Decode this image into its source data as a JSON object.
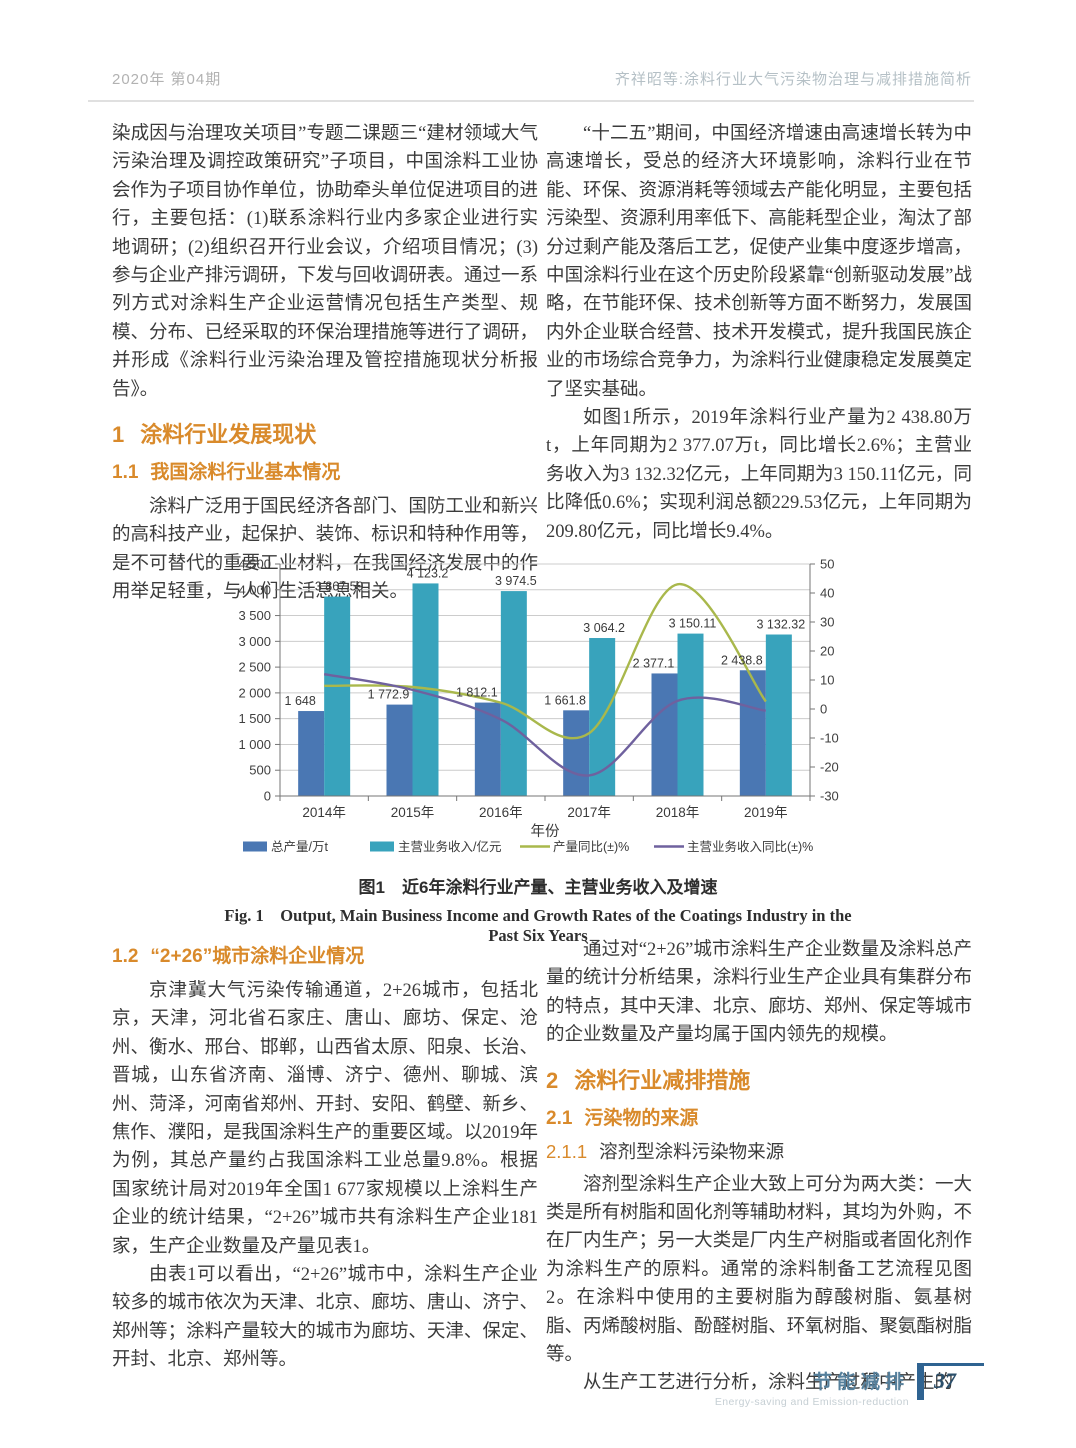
{
  "header": {
    "left": "2020年 第04期",
    "right": "齐祥昭等:涂料行业大气污染物治理与减排措施简析"
  },
  "left_top": {
    "para1": "染成因与治理攻关项目”专题二课题三“建材领域大气污染治理及调控政策研究”子项目，中国涂料工业协会作为子项目协作单位，协助牵头单位促进项目的进行，主要包括：(1)联系涂料行业内多家企业进行实地调研；(2)组织召开行业会议，介绍项目情况；(3)参与企业产排污调研，下发与回收调研表。通过一系列方式对涂料生产企业运营情况包括生产类型、规模、分布、已经采取的环保治理措施等进行了调研，并形成《涂料行业污染治理及管控措施现状分析报告》。",
    "para2": "涂料广泛用于国民经济各部门、国防工业和新兴的高科技产业，起保护、装饰、标识和特种作用等，是不可替代的重要工业材料，在我国经济发展中的作用举足轻重，与人们生活息息相关。"
  },
  "right_top": {
    "para1": "“十二五”期间，中国经济增速由高速增长转为中高速增长，受总的经济大环境影响，涂料行业在节能、环保、资源消耗等领域去产能化明显，主要包括污染型、资源利用率低下、高能耗型企业，淘汰了部分过剩产能及落后工艺，促使产业集中度逐步增高，中国涂料行业在这个历史阶段紧靠“创新驱动发展”战略，在节能环保、技术创新等方面不断努力，发展国内外企业联合经营、技术开发模式，提升我国民族企业的市场综合竞争力，为涂料行业健康稳定发展奠定了坚实基础。",
    "para2": "如图1所示，2019年涂料行业产量为2 438.80万t，上年同期为2 377.07万t，同比增长2.6%；主营业务收入为3 132.32亿元，上年同期为3 150.11亿元，同比降低0.6%；实现利润总额229.53亿元，上年同期为209.80亿元，同比增长9.4%。"
  },
  "sections": {
    "s1": {
      "num": "1",
      "title": "涂料行业发展现状"
    },
    "s1_1": {
      "num": "1.1",
      "title": "我国涂料行业基本情况"
    },
    "s1_2": {
      "num": "1.2",
      "title": "“2+26”城市涂料企业情况"
    },
    "s2": {
      "num": "2",
      "title": "涂料行业减排措施"
    },
    "s2_1": {
      "num": "2.1",
      "title": "污染物的来源"
    },
    "s2_1_1": {
      "num": "2.1.1",
      "title": "溶剂型涂料污染物来源"
    }
  },
  "figure": {
    "caption_zh": "图1　近6年涂料行业产量、主营业务收入及增速",
    "caption_en": "Fig. 1　Output, Main Business Income and Growth Rates of the Coatings Industry in the Past Six Years"
  },
  "chart_data": {
    "type": "bar+line combo",
    "categories": [
      "2014年",
      "2015年",
      "2016年",
      "2017年",
      "2018年",
      "2019年"
    ],
    "xlabel": "年份",
    "grid": true,
    "legend_position": "bottom",
    "left_axis": {
      "min": 0,
      "max": 4500,
      "step": 500,
      "tick_labels": [
        "0",
        "500",
        "1 000",
        "1 500",
        "2 000",
        "2 500",
        "3 000",
        "3 500",
        "4 000",
        "4 500"
      ]
    },
    "right_axis": {
      "min": -30,
      "max": 50,
      "step": 10,
      "tick_labels": [
        "-30",
        "-20",
        "-10",
        "0",
        "10",
        "20",
        "30",
        "40",
        "50"
      ]
    },
    "series": [
      {
        "name": "总产量/万t",
        "type": "bar",
        "axis": "left",
        "color": "#4a77b3",
        "values": [
          1648,
          1772.9,
          1812.1,
          1661.8,
          2377.1,
          2438.8
        ],
        "labels": [
          "1 648",
          "1 772.9",
          "1 812.1",
          "1 661.8",
          "2 377.1",
          "2 438.8"
        ]
      },
      {
        "name": "主营业务收入/亿元",
        "type": "bar",
        "axis": "left",
        "color": "#38a3bc",
        "values": [
          3867.59,
          4123.2,
          3974.5,
          3064.2,
          3150.11,
          3132.32
        ],
        "labels": [
          "3 867.59",
          "4 123.2",
          "3 974.5",
          "3 064.2",
          "3 150.11",
          "3 132.32"
        ]
      },
      {
        "name": "产量同比(±)%",
        "type": "line",
        "axis": "right",
        "color": "#a9b84c",
        "values": [
          8,
          7.6,
          2.2,
          -8.3,
          43,
          2.6
        ]
      },
      {
        "name": "主营业务收入同比(±)%",
        "type": "line",
        "axis": "right",
        "color": "#6f619e",
        "values": [
          12,
          6.6,
          -3.6,
          -22.9,
          2.8,
          -0.6
        ]
      }
    ]
  },
  "left_bottom": {
    "para1": "京津冀大气污染传输通道，2+26城市，包括北京，天津，河北省石家庄、唐山、廊坊、保定、沧州、衡水、邢台、邯郸，山西省太原、阳泉、长治、晋城，山东省济南、淄博、济宁、德州、聊城、滨州、菏泽，河南省郑州、开封、安阳、鹤壁、新乡、焦作、濮阳，是我国涂料生产的重要区域。以2019年为例，其总产量约占我国涂料工业总量9.8%。根据国家统计局对2019年全国1 677家规模以上涂料生产企业的统计结果，“2+26”城市共有涂料生产企业181家，生产企业数量及产量见表1。",
    "para2": "由表1可以看出，“2+26”城市中，涂料生产企业较多的城市依次为天津、北京、廊坊、唐山、济宁、郑州等；涂料产量较大的城市为廊坊、天津、保定、开封、北京、郑州等。"
  },
  "right_bottom": {
    "para1": "通过对“2+26”城市涂料生产企业数量及涂料总产量的统计分析结果，涂料行业生产企业具有集群分布的特点，其中天津、北京、廊坊、郑州、保定等城市的企业数量及产量均属于国内领先的规模。",
    "para2": "溶剂型涂料生产企业大致上可分为两大类：一大类是所有树脂和固化剂等辅助材料，其均为外购，不在厂内生产；另一大类是厂内生产树脂或者固化剂作为涂料生产的原料。通常的涂料制备工艺流程见图2。在涂料中使用的主要树脂为醇酸树脂、氨基树脂、丙烯酸树脂、酚醛树脂、环氧树脂、聚氨酯树脂等。",
    "para3": "从生产工艺进行分析，涂料生产过程中产生的"
  },
  "footer": {
    "zh": "节能减排",
    "en": "Energy-saving and Emission-reduction",
    "page": "37"
  }
}
